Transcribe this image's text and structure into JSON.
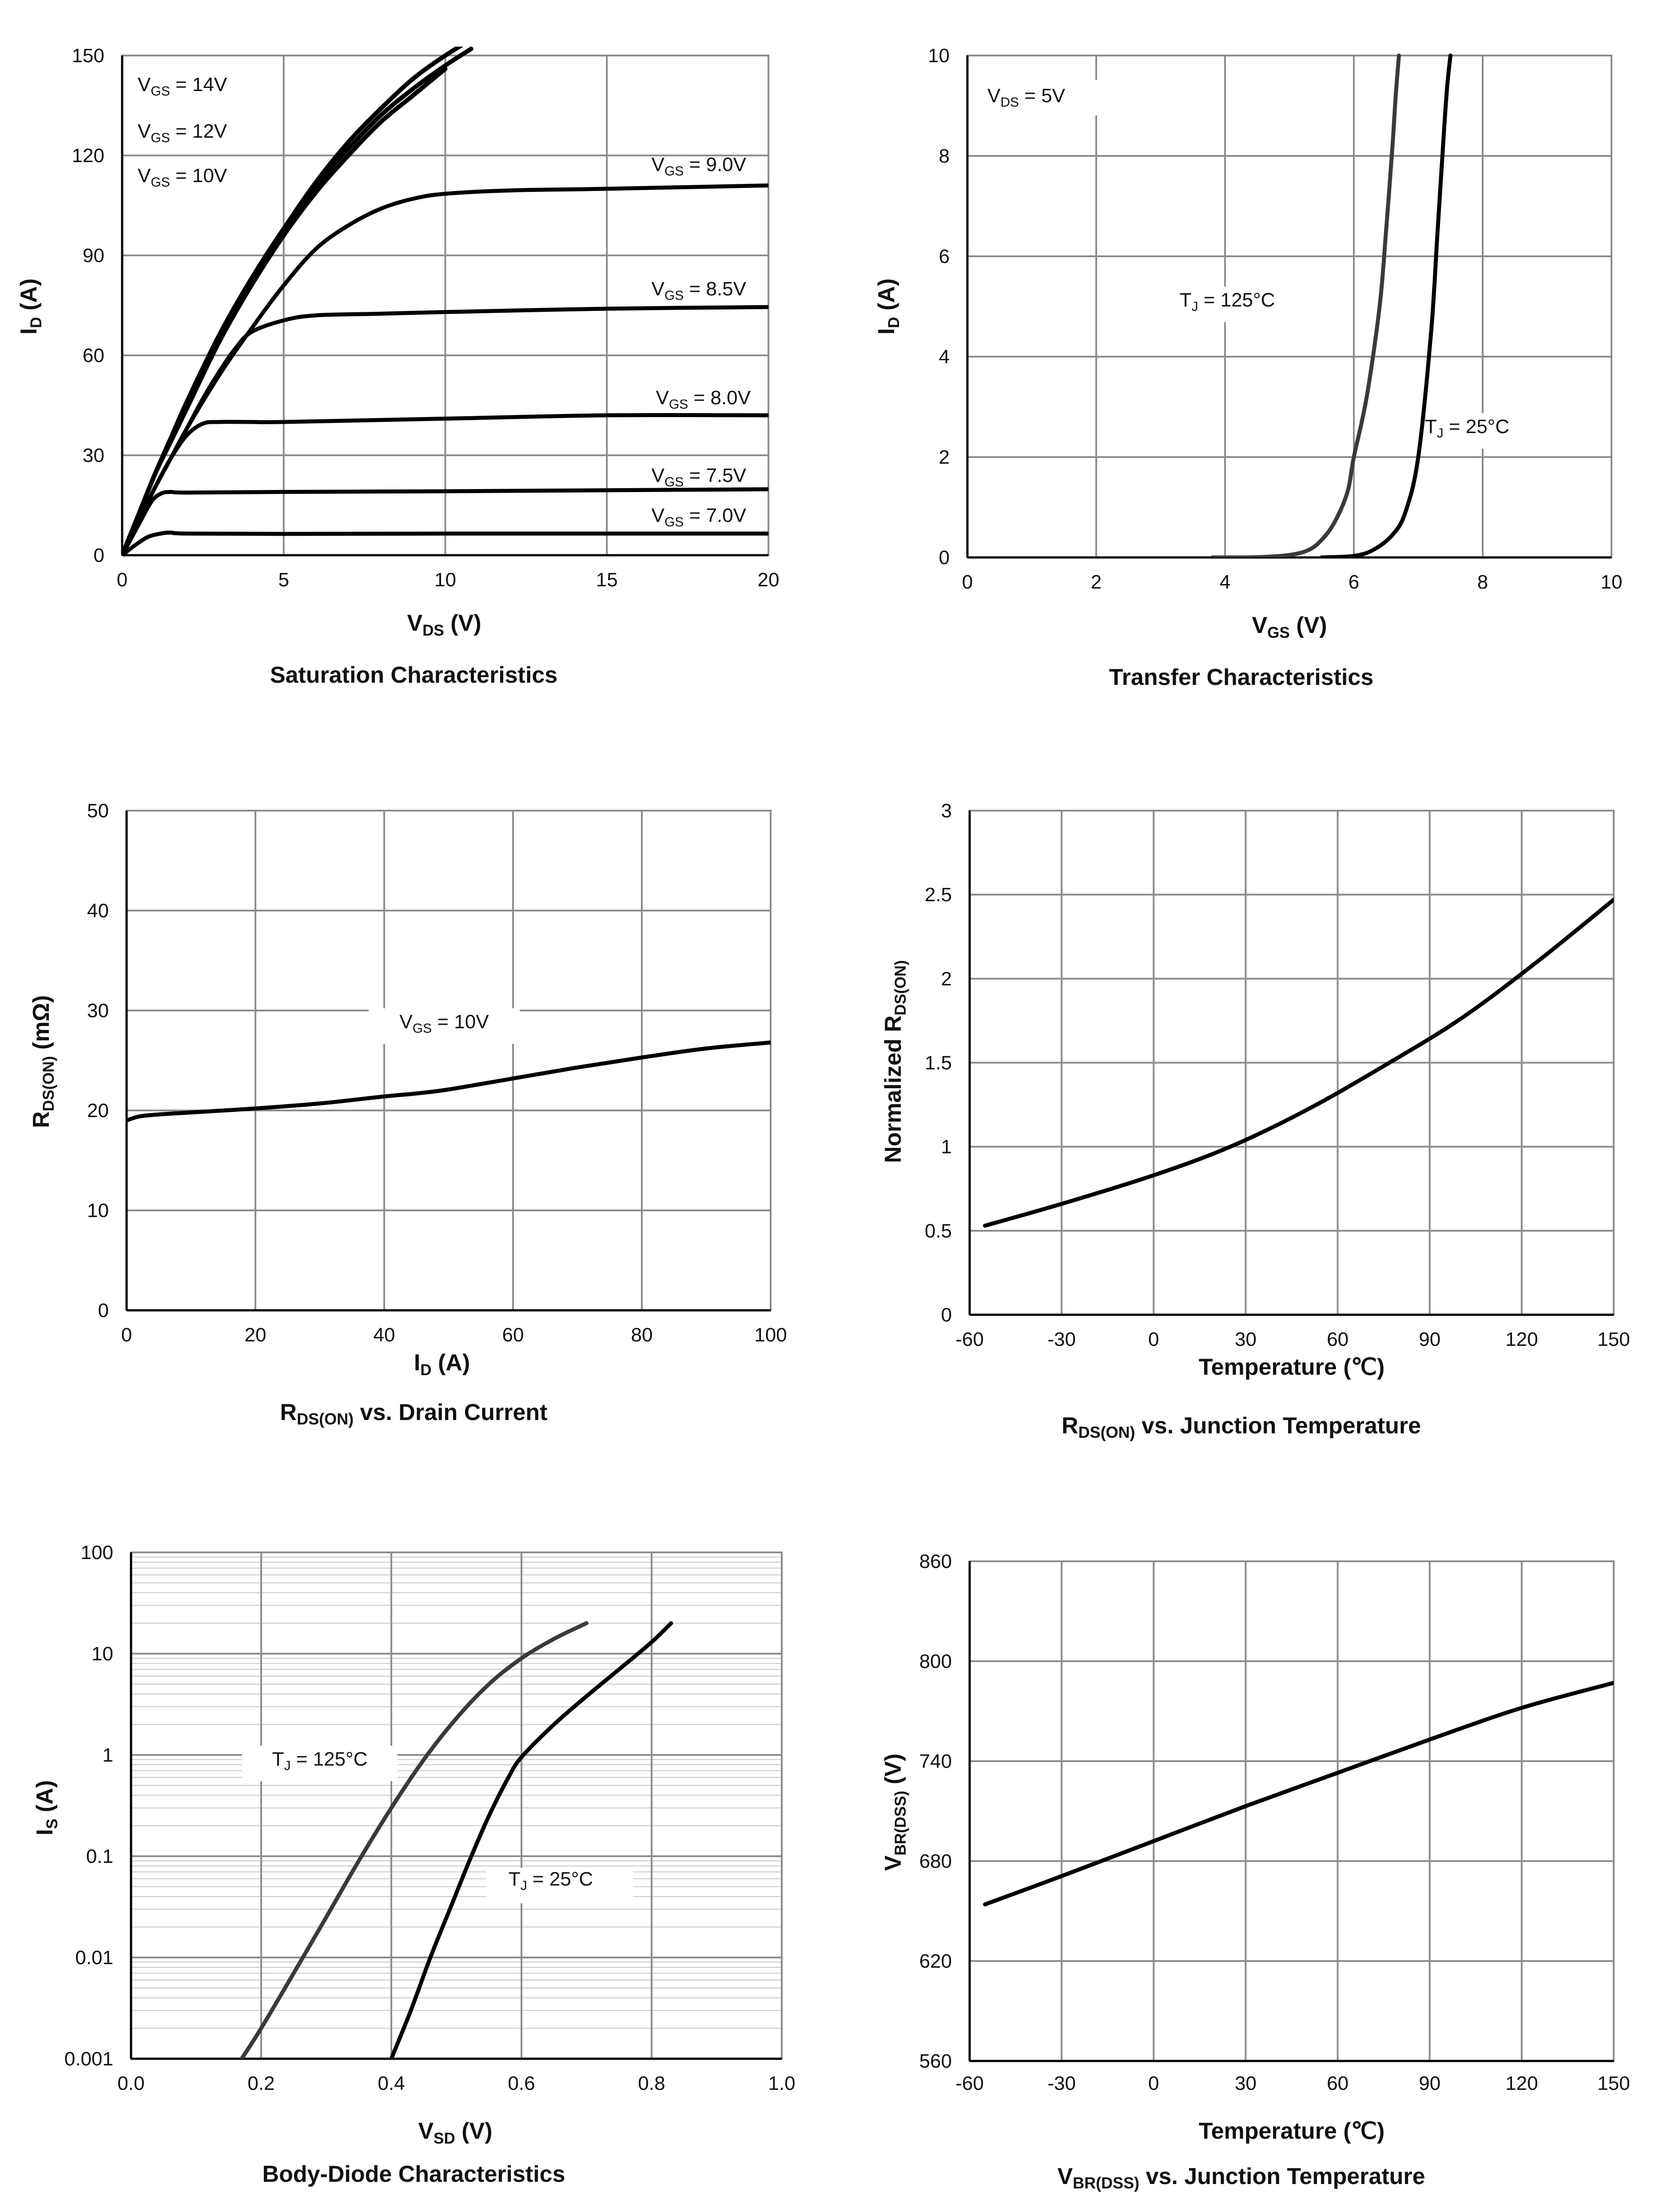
{
  "chart_data": [
    {
      "id": "sat",
      "type": "line",
      "title": "Saturation Characteristics",
      "xlabel": "V",
      "xlabel_sub": "DS",
      "xlabel_unit": " (V)",
      "ylabel": "I",
      "ylabel_sub": "D",
      "ylabel_unit": " (A)",
      "xlim": [
        0,
        20
      ],
      "ylim": [
        0,
        150
      ],
      "xticks": [
        0,
        5,
        10,
        15,
        20
      ],
      "xtick_labels": [
        "0",
        "5",
        "10",
        "15",
        "20"
      ],
      "yticks": [
        0,
        30,
        60,
        90,
        120,
        150
      ],
      "ytick_labels": [
        "0",
        "30",
        "60",
        "90",
        "120",
        "150"
      ],
      "grid": true,
      "series": [
        {
          "name": "VGS = 14V",
          "x": [
            0,
            0.5,
            1,
            1.5,
            2,
            3,
            4,
            5,
            6,
            7,
            8,
            9,
            10,
            11
          ],
          "y": [
            0,
            12,
            24,
            35,
            46,
            66,
            83,
            98,
            112,
            124,
            134,
            143,
            150,
            156
          ]
        },
        {
          "name": "VGS = 12V",
          "x": [
            0,
            0.5,
            1,
            1.5,
            2,
            3,
            4,
            5,
            6,
            7,
            8,
            9,
            10,
            10.8
          ],
          "y": [
            0,
            12,
            24,
            35,
            46,
            66,
            83,
            98,
            111,
            122,
            132,
            140,
            147,
            152
          ]
        },
        {
          "name": "VGS = 10V",
          "x": [
            0,
            0.5,
            1,
            1.5,
            2,
            3,
            4,
            5,
            6,
            7,
            8,
            9,
            10
          ],
          "y": [
            0,
            12,
            24,
            34,
            44,
            64,
            81,
            96,
            109,
            120,
            130,
            138,
            146
          ]
        },
        {
          "name": "VGS = 9.0V",
          "x": [
            0,
            0.5,
            1,
            1.5,
            2,
            3,
            4,
            5,
            6,
            7,
            8,
            9,
            10,
            12,
            15,
            20
          ],
          "y": [
            0,
            10,
            20,
            29,
            38,
            54,
            68,
            81,
            92,
            99,
            104,
            107,
            108.5,
            109.5,
            110,
            111
          ]
        },
        {
          "name": "VGS = 8.5V",
          "x": [
            0,
            0.5,
            1,
            1.5,
            2,
            2.5,
            3,
            3.5,
            4,
            5,
            6,
            8,
            10,
            15,
            20
          ],
          "y": [
            0,
            10,
            20,
            29,
            38,
            47,
            55,
            62,
            67,
            70.5,
            72,
            72.5,
            73,
            74,
            74.5
          ]
        },
        {
          "name": "VGS = 8.0V",
          "x": [
            0,
            0.5,
            1,
            1.5,
            2,
            2.5,
            3,
            4,
            5,
            10,
            15,
            20
          ],
          "y": [
            0,
            10,
            20,
            29,
            36,
            39.5,
            40,
            40,
            40,
            41,
            42,
            42
          ]
        },
        {
          "name": "VGS = 7.5V",
          "x": [
            0,
            0.5,
            0.9,
            1.2,
            1.5,
            2,
            5,
            10,
            15,
            20
          ],
          "y": [
            0,
            9,
            16,
            18.5,
            19,
            18.8,
            19,
            19.2,
            19.5,
            19.8
          ]
        },
        {
          "name": "VGS = 7.0V",
          "x": [
            0,
            0.4,
            0.8,
            1.2,
            1.5,
            2,
            5,
            10,
            15,
            20
          ],
          "y": [
            0,
            3,
            5.5,
            6.5,
            6.8,
            6.5,
            6.4,
            6.5,
            6.5,
            6.5
          ]
        }
      ],
      "annotations": [
        {
          "main": "V",
          "sub": "GS",
          "rest": " = 14V"
        },
        {
          "main": "V",
          "sub": "GS",
          "rest": " = 12V"
        },
        {
          "main": "V",
          "sub": "GS",
          "rest": " = 10V"
        },
        {
          "main": "V",
          "sub": "GS",
          "rest": " = 9.0V"
        },
        {
          "main": "V",
          "sub": "GS",
          "rest": " = 8.5V"
        },
        {
          "main": "V",
          "sub": "GS",
          "rest": " = 8.0V"
        },
        {
          "main": "V",
          "sub": "GS",
          "rest": " = 7.5V"
        },
        {
          "main": "V",
          "sub": "GS",
          "rest": " = 7.0V"
        }
      ]
    },
    {
      "id": "transfer",
      "type": "line",
      "title": "Transfer Characteristics",
      "xlabel": "V",
      "xlabel_sub": "GS",
      "xlabel_unit": " (V)",
      "ylabel": "I",
      "ylabel_sub": "D",
      "ylabel_unit": " (A)",
      "xlim": [
        0,
        10
      ],
      "ylim": [
        0,
        10
      ],
      "xticks": [
        0,
        2,
        4,
        6,
        8,
        10
      ],
      "xtick_labels": [
        "0",
        "2",
        "4",
        "6",
        "8",
        "10"
      ],
      "yticks": [
        0,
        2,
        4,
        6,
        8,
        10
      ],
      "ytick_labels": [
        "0",
        "2",
        "4",
        "6",
        "8",
        "10"
      ],
      "grid": true,
      "series": [
        {
          "name": "TJ = 125°C",
          "x": [
            3.8,
            4.5,
            5,
            5.3,
            5.5,
            5.7,
            5.9,
            6.0,
            6.2,
            6.4,
            6.5,
            6.6,
            6.65,
            6.7
          ],
          "y": [
            0,
            0.005,
            0.05,
            0.15,
            0.35,
            0.7,
            1.3,
            2.0,
            3.2,
            5.0,
            6.5,
            8.2,
            9.2,
            10
          ]
        },
        {
          "name": "TJ = 25°C",
          "x": [
            5.5,
            6.0,
            6.3,
            6.6,
            6.8,
            7.0,
            7.2,
            7.3,
            7.4,
            7.45,
            7.5
          ],
          "y": [
            0,
            0.03,
            0.15,
            0.45,
            0.9,
            2.0,
            4.5,
            6.5,
            8.5,
            9.4,
            10
          ]
        }
      ],
      "annotations": [
        {
          "main": "V",
          "sub": "DS",
          "rest": " = 5V"
        },
        {
          "main": "T",
          "sub": "J",
          "rest": " = 125°C"
        },
        {
          "main": "T",
          "sub": "J",
          "rest": " = 25°C"
        }
      ]
    },
    {
      "id": "rdson_id",
      "type": "line",
      "title": "R",
      "title_sub": "DS(ON)",
      "title_rest": " vs. Drain Current",
      "xlabel": "I",
      "xlabel_sub": "D",
      "xlabel_unit": " (A)",
      "ylabel": "R",
      "ylabel_sub": "DS(ON)",
      "ylabel_unit": " (mΩ)",
      "xlim": [
        0,
        100
      ],
      "ylim": [
        0,
        50
      ],
      "xticks": [
        0,
        20,
        40,
        60,
        80,
        100
      ],
      "xtick_labels": [
        "0",
        "20",
        "40",
        "60",
        "80",
        "100"
      ],
      "yticks": [
        0,
        10,
        20,
        30,
        40,
        50
      ],
      "ytick_labels": [
        "0",
        "10",
        "20",
        "30",
        "40",
        "50"
      ],
      "grid": true,
      "series": [
        {
          "name": "VGS = 10V",
          "x": [
            0,
            2,
            5,
            10,
            20,
            30,
            40,
            45,
            50,
            60,
            70,
            80,
            90,
            100
          ],
          "y": [
            19,
            19.4,
            19.6,
            19.8,
            20.2,
            20.7,
            21.4,
            21.7,
            22.1,
            23.2,
            24.3,
            25.3,
            26.2,
            26.8
          ]
        }
      ],
      "annotations": [
        {
          "main": "V",
          "sub": "GS",
          "rest": " = 10V"
        }
      ]
    },
    {
      "id": "rdson_tj",
      "type": "line",
      "title": "R",
      "title_sub": "DS(ON)",
      "title_rest": " vs. Junction Temperature",
      "xlabel": "Temperature (℃)",
      "ylabel": "Normalized R",
      "ylabel_sub": "DS(ON)",
      "ylabel_unit": "",
      "xlim": [
        -60,
        150
      ],
      "ylim": [
        0,
        3
      ],
      "xticks": [
        -60,
        -30,
        0,
        30,
        60,
        90,
        120,
        150
      ],
      "xtick_labels": [
        "-60",
        "-30",
        "0",
        "30",
        "60",
        "90",
        "120",
        "150"
      ],
      "yticks": [
        0,
        0.5,
        1,
        1.5,
        2,
        2.5,
        3
      ],
      "ytick_labels": [
        "0",
        "0.5",
        "1",
        "1.5",
        "2",
        "2.5",
        "3"
      ],
      "grid": true,
      "series": [
        {
          "name": "RDS(ON) normalized",
          "x": [
            -55,
            -30,
            0,
            25,
            50,
            75,
            100,
            125,
            150
          ],
          "y": [
            0.53,
            0.66,
            0.83,
            1.0,
            1.22,
            1.48,
            1.76,
            2.1,
            2.47
          ]
        }
      ]
    },
    {
      "id": "diode",
      "type": "line",
      "title": "Body-Diode Characteristics",
      "xlabel": "V",
      "xlabel_sub": "SD",
      "xlabel_unit": " (V)",
      "ylabel": "I",
      "ylabel_sub": "S",
      "ylabel_unit": " (A)",
      "xlim": [
        0,
        1.0
      ],
      "ylim": [
        0.001,
        100
      ],
      "yscale": "log",
      "xticks": [
        0,
        0.2,
        0.4,
        0.6,
        0.8,
        1.0
      ],
      "xtick_labels": [
        "0.0",
        "0.2",
        "0.4",
        "0.6",
        "0.8",
        "1.0"
      ],
      "yticks": [
        0.001,
        0.01,
        0.1,
        1,
        10,
        100
      ],
      "ytick_labels": [
        "0.001",
        "0.01",
        "0.1",
        "1",
        "10",
        "100"
      ],
      "grid": true,
      "series": [
        {
          "name": "TJ = 125°C",
          "x": [
            0.17,
            0.2,
            0.25,
            0.3,
            0.35,
            0.4,
            0.45,
            0.5,
            0.55,
            0.6,
            0.65,
            0.7
          ],
          "y": [
            0.001,
            0.002,
            0.007,
            0.025,
            0.09,
            0.3,
            0.9,
            2.3,
            5,
            9,
            14,
            20
          ]
        },
        {
          "name": "TJ = 25°C",
          "x": [
            0.4,
            0.43,
            0.46,
            0.49,
            0.52,
            0.55,
            0.58,
            0.6,
            0.65,
            0.7,
            0.75,
            0.8,
            0.83
          ],
          "y": [
            0.001,
            0.003,
            0.01,
            0.03,
            0.09,
            0.25,
            0.6,
            0.95,
            2,
            3.8,
            7,
            13,
            20
          ]
        }
      ],
      "annotations": [
        {
          "main": "T",
          "sub": "J",
          "rest": " = 125°C"
        },
        {
          "main": "T",
          "sub": "J",
          "rest": " = 25°C"
        }
      ]
    },
    {
      "id": "vbr_tj",
      "type": "line",
      "title": "V",
      "title_sub": "BR(DSS)",
      "title_rest": " vs. Junction Temperature",
      "xlabel": "Temperature (℃)",
      "ylabel": "V",
      "ylabel_sub": "BR(DSS)",
      "ylabel_unit": " (V)",
      "xlim": [
        -60,
        150
      ],
      "ylim": [
        560,
        860
      ],
      "xticks": [
        -60,
        -30,
        0,
        30,
        60,
        90,
        120,
        150
      ],
      "xtick_labels": [
        "-60",
        "-30",
        "0",
        "30",
        "60",
        "90",
        "120",
        "150"
      ],
      "yticks": [
        560,
        620,
        680,
        740,
        800,
        860
      ],
      "ytick_labels": [
        "560",
        "620",
        "680",
        "740",
        "800",
        "860"
      ],
      "grid": true,
      "series": [
        {
          "name": "VBR(DSS)",
          "x": [
            -55,
            -30,
            0,
            30,
            60,
            90,
            120,
            150
          ],
          "y": [
            654,
            671,
            692,
            713,
            733,
            753,
            772,
            787
          ]
        }
      ]
    }
  ]
}
